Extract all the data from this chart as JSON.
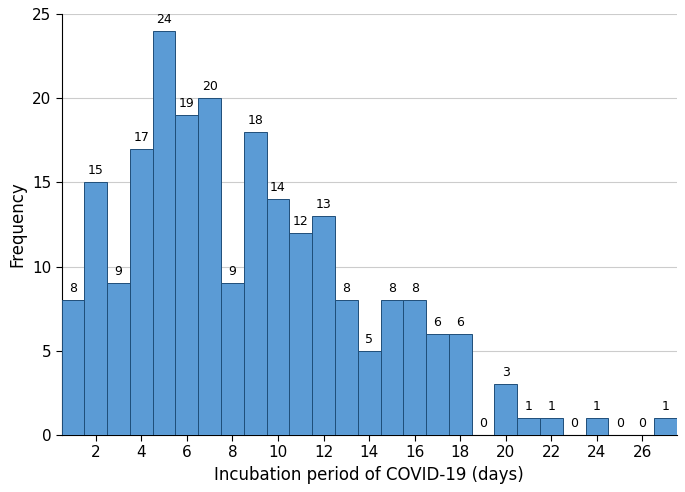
{
  "days": [
    1,
    2,
    3,
    4,
    5,
    6,
    7,
    8,
    9,
    10,
    11,
    12,
    13,
    14,
    15,
    16,
    17,
    18,
    19,
    20,
    21,
    22,
    23,
    24,
    25,
    26,
    27
  ],
  "frequencies": [
    8,
    15,
    9,
    17,
    24,
    19,
    20,
    9,
    18,
    14,
    12,
    13,
    8,
    5,
    8,
    8,
    6,
    6,
    0,
    3,
    1,
    1,
    0,
    1,
    0,
    0,
    1
  ],
  "bar_color": "#5b9bd5",
  "bar_edge_color": "#1f4e79",
  "xlabel": "Incubation period of COVID-19 (days)",
  "ylabel": "Frequency",
  "ylim": [
    0,
    25
  ],
  "xlim_left": 0.5,
  "xlim_right": 27.5,
  "xtick_positions": [
    2,
    4,
    6,
    8,
    10,
    12,
    14,
    16,
    18,
    20,
    22,
    24,
    26
  ],
  "ytick_positions": [
    0,
    5,
    10,
    15,
    20,
    25
  ],
  "label_fontsize": 12,
  "tick_fontsize": 11,
  "annotation_fontsize": 9,
  "background_color": "#ffffff",
  "grid_color": "#cccccc",
  "figwidth": 6.85,
  "figheight": 4.92,
  "dpi": 100
}
